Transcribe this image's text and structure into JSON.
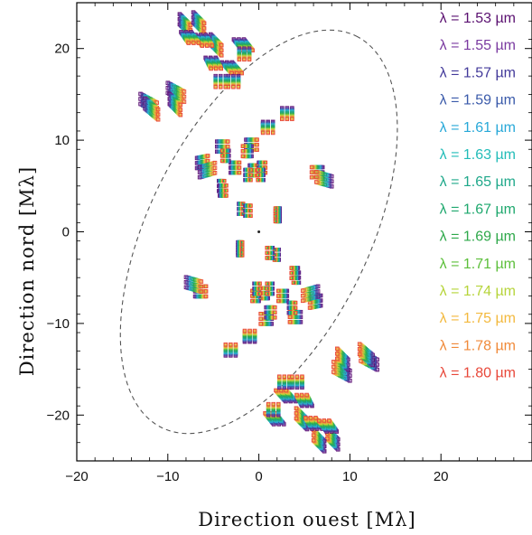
{
  "chart_data": {
    "type": "scatter",
    "xlabel": "Direction ouest [Mλ]",
    "ylabel": "Direction nord [Mλ]",
    "xlim": [
      -20,
      30
    ],
    "ylim": [
      -25,
      25
    ],
    "xticks": [
      -20,
      -10,
      0,
      10,
      20
    ],
    "yticks": [
      -20,
      -10,
      0,
      10,
      20
    ],
    "xtick_labels": [
      "−20",
      "−10",
      "0",
      "10",
      "20"
    ],
    "ytick_labels": [
      "−20",
      "−10",
      "0",
      "10",
      "20"
    ],
    "legend_position": "right",
    "series": [
      {
        "name": "λ = 1.53 µm",
        "color": "#5a1070"
      },
      {
        "name": "λ = 1.55 µm",
        "color": "#7a3aa0"
      },
      {
        "name": "λ = 1.57 µm",
        "color": "#433a9a"
      },
      {
        "name": "λ = 1.59 µm",
        "color": "#3a5aaa"
      },
      {
        "name": "λ = 1.61 µm",
        "color": "#27a8d8"
      },
      {
        "name": "λ = 1.63 µm",
        "color": "#22bcb8"
      },
      {
        "name": "λ = 1.65 µm",
        "color": "#1fa88a"
      },
      {
        "name": "λ = 1.67 µm",
        "color": "#1fa86e"
      },
      {
        "name": "λ = 1.69 µm",
        "color": "#2ea84a"
      },
      {
        "name": "λ = 1.71 µm",
        "color": "#5cbf3a"
      },
      {
        "name": "λ = 1.74 µm",
        "color": "#b6d43a"
      },
      {
        "name": "λ = 1.75 µm",
        "color": "#f3b93e"
      },
      {
        "name": "λ = 1.78 µm",
        "color": "#f08a3a"
      },
      {
        "name": "λ = 1.80 µm",
        "color": "#e8483a"
      }
    ],
    "uv_tracks": [
      {
        "u": -8.7,
        "v": 23.2,
        "du": 1.0,
        "dv": -1.0
      },
      {
        "u": -7.2,
        "v": 23.4,
        "du": 1.0,
        "dv": -1.0
      },
      {
        "u": -5.3,
        "v": 21.0,
        "du": 1.0,
        "dv": -1.0
      },
      {
        "u": -2.2,
        "v": 21.0,
        "du": 0.8,
        "dv": -1.0
      },
      {
        "u": -3.5,
        "v": 18.5,
        "du": 0.9,
        "dv": -1.0
      },
      {
        "u": -13.0,
        "v": 14.5,
        "du": 1.5,
        "dv": -0.8
      },
      {
        "u": -10.0,
        "v": 15.7,
        "du": 1.5,
        "dv": -0.8
      },
      {
        "u": 3.1,
        "v": 13.5,
        "du": 0.0,
        "dv": -1.0
      },
      {
        "u": -4.6,
        "v": 9.3,
        "du": 1.0,
        "dv": 0.0
      },
      {
        "u": -1.4,
        "v": 9.5,
        "du": 1.0,
        "dv": 0.0
      },
      {
        "u": -6.8,
        "v": 7.5,
        "du": 1.0,
        "dv": 0.2
      },
      {
        "u": -3.1,
        "v": 7.0,
        "du": 0.8,
        "dv": 0.0
      },
      {
        "u": -1.0,
        "v": 6.7,
        "du": 0.7,
        "dv": 0.0
      },
      {
        "u": 0.0,
        "v": 7.0,
        "du": 0.6,
        "dv": 0.0
      },
      {
        "u": 7.0,
        "v": 6.5,
        "du": -1.0,
        "dv": 0.0
      },
      {
        "u": -4.4,
        "v": 5.0,
        "du": 0.5,
        "dv": 0.0
      },
      {
        "u": -2.2,
        "v": 2.5,
        "du": 0.4,
        "dv": 0.0
      },
      {
        "u": 2.3,
        "v": 2.0,
        "du": -0.4,
        "dv": 0.0
      },
      {
        "u": -2.3,
        "v": -1.7,
        "du": 0.4,
        "dv": 0.0
      },
      {
        "u": 1.5,
        "v": -2.3,
        "du": -0.5,
        "dv": 0.0
      },
      {
        "u": 4.3,
        "v": -4.5,
        "du": -0.6,
        "dv": 0.0
      },
      {
        "u": -8.0,
        "v": -5.5,
        "du": 1.4,
        "dv": -0.4
      },
      {
        "u": -0.5,
        "v": -6.2,
        "du": 0.5,
        "dv": 0.0
      },
      {
        "u": 1.5,
        "v": -6.2,
        "du": -0.5,
        "dv": 0.0
      },
      {
        "u": 6.5,
        "v": -6.5,
        "du": -1.4,
        "dv": -0.4
      },
      {
        "u": 0.8,
        "v": -8.8,
        "du": 0.8,
        "dv": 0.0
      },
      {
        "u": 3.3,
        "v": -8.3,
        "du": 0.6,
        "dv": 0.0
      },
      {
        "u": -1.0,
        "v": -12.0,
        "du": 0.0,
        "dv": 1.0
      },
      {
        "u": 12.5,
        "v": -14.0,
        "du": -1.2,
        "dv": 1.0
      },
      {
        "u": 9.8,
        "v": -14.5,
        "du": -1.0,
        "dv": 1.0
      },
      {
        "u": 2.8,
        "v": -17.0,
        "du": 0.0,
        "dv": 1.0
      },
      {
        "u": 4.2,
        "v": -17.0,
        "du": 0.0,
        "dv": 1.0
      },
      {
        "u": 1.6,
        "v": -20.0,
        "du": 0.0,
        "dv": 1.0
      },
      {
        "u": 5.3,
        "v": -19.0,
        "du": -0.5,
        "dv": 1.0
      },
      {
        "u": 6.4,
        "v": -21.5,
        "du": -0.6,
        "dv": 1.0
      },
      {
        "u": 8.0,
        "v": -21.8,
        "du": -0.7,
        "dv": 1.0
      }
    ],
    "ellipse": {
      "center": [
        0.0,
        0.0
      ],
      "semi_major": 24.0,
      "semi_minor": 12.0,
      "angle_deg": -63.5
    }
  }
}
